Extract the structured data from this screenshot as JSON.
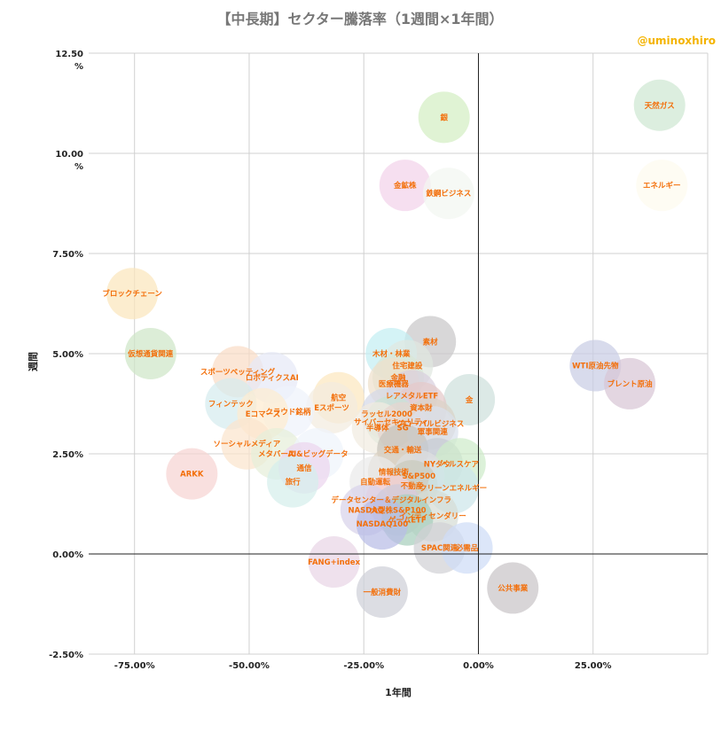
{
  "chart_data": {
    "type": "bubble",
    "title": "【中長期】セクター騰落率（1週間×1年間）",
    "credit": "@uminoxhiro",
    "xlabel": "1年間",
    "ylabel": "週間",
    "xlim": [
      -85,
      50
    ],
    "ylim": [
      -2.5,
      12.5
    ],
    "x_ticks": [
      {
        "value": -75,
        "label": "-75.00%"
      },
      {
        "value": -50,
        "label": "-50.00%"
      },
      {
        "value": -25,
        "label": "-25.00%"
      },
      {
        "value": 0,
        "label": "0.00%"
      },
      {
        "value": 25,
        "label": "25.00%"
      }
    ],
    "y_ticks": [
      {
        "value": 12.5,
        "label": "12.50",
        "suffix": "%"
      },
      {
        "value": 10,
        "label": "10.00",
        "suffix": "%"
      },
      {
        "value": 7.5,
        "label": "7.50%"
      },
      {
        "value": 5,
        "label": "5.00%"
      },
      {
        "value": 2.5,
        "label": "2.50%"
      },
      {
        "value": 0,
        "label": "0.00%"
      },
      {
        "value": -2.5,
        "label": "-2.50%"
      }
    ],
    "points": [
      {
        "name": "天然ガス",
        "x": 39.5,
        "y": 11.2,
        "color": "#cfe8d2"
      },
      {
        "name": "銀",
        "x": -7.5,
        "y": 10.9,
        "color": "#d4efc4"
      },
      {
        "name": "エネルギー",
        "x": 40.0,
        "y": 9.2,
        "color": "#fdfbee"
      },
      {
        "name": "金鉱株",
        "x": -16.0,
        "y": 9.2,
        "color": "#f3d3ea"
      },
      {
        "name": "鉄鋼ビジネス",
        "x": -6.5,
        "y": 9.0,
        "color": "#f2f6f1"
      },
      {
        "name": "ブロックチェーン",
        "x": -75.5,
        "y": 6.5,
        "color": "#fbe6bd"
      },
      {
        "name": "素材",
        "x": -10.5,
        "y": 5.3,
        "color": "#c9c7c9"
      },
      {
        "name": "木材・林業",
        "x": -19.0,
        "y": 5.0,
        "color": "#c4eef2"
      },
      {
        "name": "仮想通貨関連",
        "x": -71.5,
        "y": 5.0,
        "color": "#cfe6c8"
      },
      {
        "name": "WTI原油先物",
        "x": 25.5,
        "y": 4.7,
        "color": "#c9cde4"
      },
      {
        "name": "住宅建設",
        "x": -15.5,
        "y": 4.7,
        "color": "#e0e8e0"
      },
      {
        "name": "スポーツベッティング",
        "x": -52.5,
        "y": 4.55,
        "color": "#f9dcc6"
      },
      {
        "name": "ロボティクスAI",
        "x": -45.0,
        "y": 4.4,
        "color": "#e6e9f7"
      },
      {
        "name": "金融",
        "x": -17.5,
        "y": 4.4,
        "color": "#d9e6d6"
      },
      {
        "name": "ブレント原油",
        "x": 33.0,
        "y": 4.25,
        "color": "#d8c6d6"
      },
      {
        "name": "医療機器",
        "x": -18.5,
        "y": 4.25,
        "color": "#efe0cc"
      },
      {
        "name": "レアメタルETF",
        "x": -14.5,
        "y": 3.95,
        "color": "#d8d0de"
      },
      {
        "name": "金",
        "x": -2.0,
        "y": 3.85,
        "color": "#cfe0dc"
      },
      {
        "name": "航空",
        "x": -30.5,
        "y": 3.9,
        "color": "#fce8bf"
      },
      {
        "name": "フィンテック",
        "x": -54.0,
        "y": 3.75,
        "color": "#d6ecef"
      },
      {
        "name": "Eスポーツ",
        "x": -32.0,
        "y": 3.65,
        "color": "#f3ecdf"
      },
      {
        "name": "資本財",
        "x": -12.5,
        "y": 3.65,
        "color": "#e5c9c9"
      },
      {
        "name": "クラウド銘柄",
        "x": -41.5,
        "y": 3.55,
        "color": "#eef3fb"
      },
      {
        "name": "Eコマース",
        "x": -47.0,
        "y": 3.5,
        "color": "#fdebd0"
      },
      {
        "name": "ラッセル2000",
        "x": -20.0,
        "y": 3.5,
        "color": "#d4d8e8"
      },
      {
        "name": "サイバーセキュリティ",
        "x": -19.0,
        "y": 3.3,
        "color": "#c9e3d4"
      },
      {
        "name": "グローバルビジネス",
        "x": -10.5,
        "y": 3.25,
        "color": "#d9d3c8"
      },
      {
        "name": "半導体",
        "x": -22.0,
        "y": 3.15,
        "color": "#f1ece1"
      },
      {
        "name": "SG",
        "x": -16.5,
        "y": 3.15,
        "color": "#e6d5d0"
      },
      {
        "name": "軍事関連",
        "x": -10.0,
        "y": 3.05,
        "color": "#d9e1ec"
      },
      {
        "name": "ソーシャルメディア",
        "x": -50.5,
        "y": 2.75,
        "color": "#fbe4cd"
      },
      {
        "name": "交通・輸送",
        "x": -16.5,
        "y": 2.6,
        "color": "#c8c4bb"
      },
      {
        "name": "メタバース",
        "x": -44.0,
        "y": 2.5,
        "color": "#e6efd9"
      },
      {
        "name": "AI&ビッグデータ",
        "x": -35.0,
        "y": 2.5,
        "color": "#eef4fb"
      },
      {
        "name": "NYダウ",
        "x": -9.0,
        "y": 2.25,
        "color": "#c6cbd3"
      },
      {
        "name": "ヘルスケア",
        "x": -4.0,
        "y": 2.25,
        "color": "#cfeccb"
      },
      {
        "name": "通信",
        "x": -38.0,
        "y": 2.15,
        "color": "#ecd6ee"
      },
      {
        "name": "ARKK",
        "x": -62.5,
        "y": 2.0,
        "color": "#f7d4d2"
      },
      {
        "name": "情報技術",
        "x": -18.5,
        "y": 2.05,
        "color": "#ddd3c3"
      },
      {
        "name": "S&P500",
        "x": -13.0,
        "y": 1.95,
        "color": "#dedfe1"
      },
      {
        "name": "自動運転",
        "x": -22.5,
        "y": 1.8,
        "color": "#eaeaea"
      },
      {
        "name": "旅行",
        "x": -40.5,
        "y": 1.8,
        "color": "#d6efec"
      },
      {
        "name": "不動産",
        "x": -14.5,
        "y": 1.7,
        "color": "#c9cbbd"
      },
      {
        "name": "クリーンエネルギー",
        "x": -5.5,
        "y": 1.65,
        "color": "#cde6ea"
      },
      {
        "name": "データセンター＆デジタルインフラ",
        "x": -19.0,
        "y": 1.35,
        "color": "#f6cfd1"
      },
      {
        "name": "NASDAQ",
        "x": -24.5,
        "y": 1.1,
        "color": "#d8d3ea"
      },
      {
        "name": "大型株S&P100",
        "x": -17.5,
        "y": 1.1,
        "color": "#cfcbd9"
      },
      {
        "name": "インディセンダリー",
        "x": -10.0,
        "y": 0.95,
        "color": "#d6ddd6"
      },
      {
        "name": "ゲームETF",
        "x": -15.5,
        "y": 0.85,
        "color": "#a7cfbd"
      },
      {
        "name": "NASDAQ100",
        "x": -21.0,
        "y": 0.75,
        "color": "#b9bde6"
      },
      {
        "name": "SPAC関連",
        "x": -8.5,
        "y": 0.15,
        "color": "#d1d1d5"
      },
      {
        "name": "必需品",
        "x": -2.5,
        "y": 0.15,
        "color": "#cfdcf7"
      },
      {
        "name": "FANG+index",
        "x": -31.5,
        "y": -0.2,
        "color": "#e9d6e6"
      },
      {
        "name": "公共事業",
        "x": 7.5,
        "y": -0.85,
        "color": "#c9c5c7"
      },
      {
        "name": "一般消費財",
        "x": -21.0,
        "y": -0.95,
        "color": "#ced0d8"
      }
    ]
  }
}
